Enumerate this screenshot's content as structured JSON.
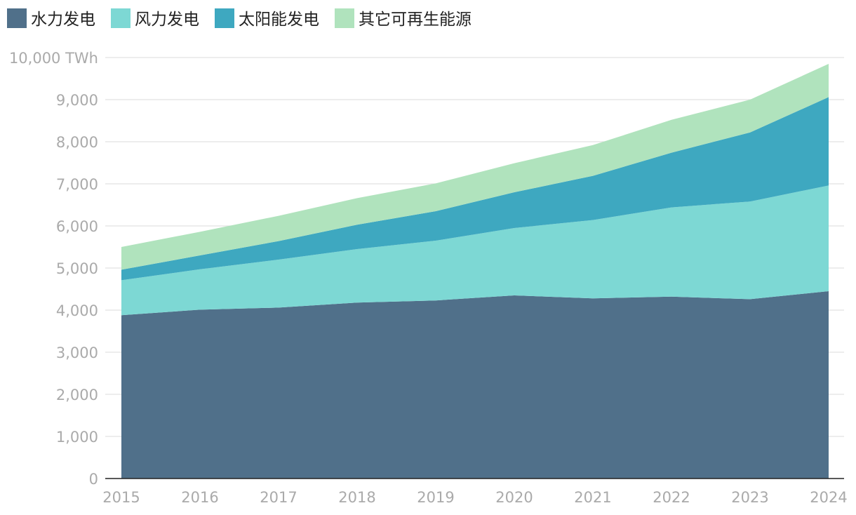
{
  "chart_data": {
    "type": "area",
    "stacked": true,
    "unit": "TWh",
    "x": [
      "2015",
      "2016",
      "2017",
      "2018",
      "2019",
      "2020",
      "2021",
      "2022",
      "2023",
      "2024"
    ],
    "series": [
      {
        "name": "水力发电",
        "color": "#50708a",
        "values": [
          3880,
          4010,
          4060,
          4180,
          4230,
          4350,
          4280,
          4320,
          4260,
          4450
        ]
      },
      {
        "name": "风力发电",
        "color": "#7dd8d4",
        "values": [
          830,
          960,
          1140,
          1270,
          1420,
          1600,
          1860,
          2120,
          2320,
          2510
        ]
      },
      {
        "name": "太阳能发电",
        "color": "#3ea8c0",
        "values": [
          250,
          330,
          440,
          580,
          700,
          850,
          1050,
          1300,
          1640,
          2100
        ]
      },
      {
        "name": "其它可再生能源",
        "color": "#b0e3bd",
        "values": [
          540,
          560,
          600,
          630,
          660,
          690,
          730,
          780,
          780,
          790
        ]
      }
    ],
    "y_ticks": [
      {
        "value": 0,
        "label": "0"
      },
      {
        "value": 1000,
        "label": "1,000"
      },
      {
        "value": 2000,
        "label": "2,000"
      },
      {
        "value": 3000,
        "label": "3,000"
      },
      {
        "value": 4000,
        "label": "4,000"
      },
      {
        "value": 5000,
        "label": "5,000"
      },
      {
        "value": 6000,
        "label": "6,000"
      },
      {
        "value": 7000,
        "label": "7,000"
      },
      {
        "value": 8000,
        "label": "8,000"
      },
      {
        "value": 9000,
        "label": "9,000"
      },
      {
        "value": 10000,
        "label": "10,000 TWh"
      }
    ],
    "ylim": [
      0,
      10000
    ],
    "grid": true,
    "legend_position": "top-left",
    "title": "",
    "xlabel": "",
    "ylabel": ""
  }
}
